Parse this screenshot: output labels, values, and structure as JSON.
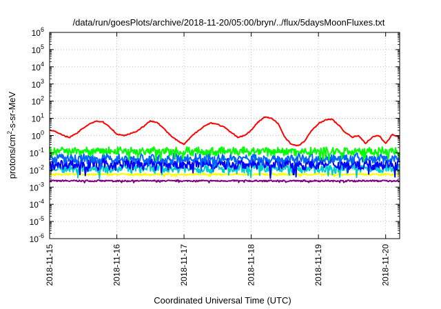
{
  "chart_data": {
    "type": "line",
    "title": "/data/run/goesPlots/archive/2018-11-20/05:00/bryn/../flux/5daysMoonFluxes.txt",
    "xlabel": "Coordinated Universal Time (UTC)",
    "ylabel_base": "protons/cm",
    "ylabel_sup": "2",
    "ylabel_rest": "-s-sr-MeV",
    "yscale": "log",
    "ylim": [
      1e-06,
      1000000.0
    ],
    "y_ticks": [
      {
        "base": "10",
        "exp": "-6",
        "value": 1e-06
      },
      {
        "base": "10",
        "exp": "-5",
        "value": 1e-05
      },
      {
        "base": "10",
        "exp": "-4",
        "value": 0.0001
      },
      {
        "base": "10",
        "exp": "-3",
        "value": 0.001
      },
      {
        "base": "10",
        "exp": "-2",
        "value": 0.01
      },
      {
        "base": "10",
        "exp": "-1",
        "value": 0.1
      },
      {
        "base": "10",
        "exp": "0",
        "value": 1
      },
      {
        "base": "10",
        "exp": "1",
        "value": 10
      },
      {
        "base": "10",
        "exp": "2",
        "value": 100
      },
      {
        "base": "10",
        "exp": "3",
        "value": 1000
      },
      {
        "base": "10",
        "exp": "4",
        "value": 10000
      },
      {
        "base": "10",
        "exp": "5",
        "value": 100000
      },
      {
        "base": "10",
        "exp": "6",
        "value": 1000000
      }
    ],
    "xlim": [
      "2018-11-15",
      "2018-11-20T05:00"
    ],
    "x_ticks": [
      "2018-11-15",
      "2018-11-16",
      "2018-11-17",
      "2018-11-18",
      "2018-11-19",
      "2018-11-20"
    ],
    "grid": true,
    "series": [
      {
        "color": "#ff0000",
        "x": [
          0.0,
          0.1,
          0.2,
          0.3,
          0.4,
          0.5,
          0.6,
          0.7,
          0.8,
          0.9,
          1.0,
          1.1,
          1.2,
          1.3,
          1.4,
          1.5,
          1.6,
          1.7,
          1.8,
          1.9,
          2.0,
          2.1,
          2.2,
          2.3,
          2.4,
          2.5,
          2.6,
          2.7,
          2.8,
          2.9,
          3.0,
          3.1,
          3.2,
          3.3,
          3.4,
          3.5,
          3.6,
          3.7,
          3.8,
          3.9,
          4.0,
          4.1,
          4.2,
          4.3,
          4.4,
          4.5,
          4.6,
          4.7,
          4.8,
          4.9,
          5.0,
          5.05,
          5.1,
          5.15,
          5.21
        ],
        "values": [
          2.2,
          1.6,
          1.0,
          0.8,
          1.3,
          2.7,
          5.0,
          7.0,
          6.0,
          3.0,
          1.2,
          1.0,
          1.3,
          1.8,
          3.5,
          7.0,
          6.0,
          2.5,
          1.0,
          0.5,
          0.3,
          0.8,
          1.8,
          3.5,
          5.5,
          4.5,
          3.0,
          1.5,
          0.8,
          1.0,
          2.0,
          6.0,
          12,
          10,
          5.0,
          0.8,
          0.3,
          0.25,
          0.5,
          2.0,
          5.0,
          8.0,
          9.0,
          4.0,
          1.5,
          0.8,
          1.0,
          0.35,
          0.8,
          1.0,
          0.35,
          0.6,
          1.2,
          1.0,
          0.7
        ]
      },
      {
        "color": "#00ff00",
        "level": 0.12,
        "amp": 0.22
      },
      {
        "color": "#0066ff",
        "level": 0.045,
        "amp": 0.25
      },
      {
        "color": "#0000ff",
        "level": 0.022,
        "amp": 0.28
      },
      {
        "color": "#00cccc",
        "level": 0.012,
        "amp": 0.22
      },
      {
        "color": "#ffff00",
        "level": 0.0055,
        "amp": 0.05
      },
      {
        "color": "#800080",
        "level": 0.0023,
        "amp": 0.04
      }
    ]
  }
}
